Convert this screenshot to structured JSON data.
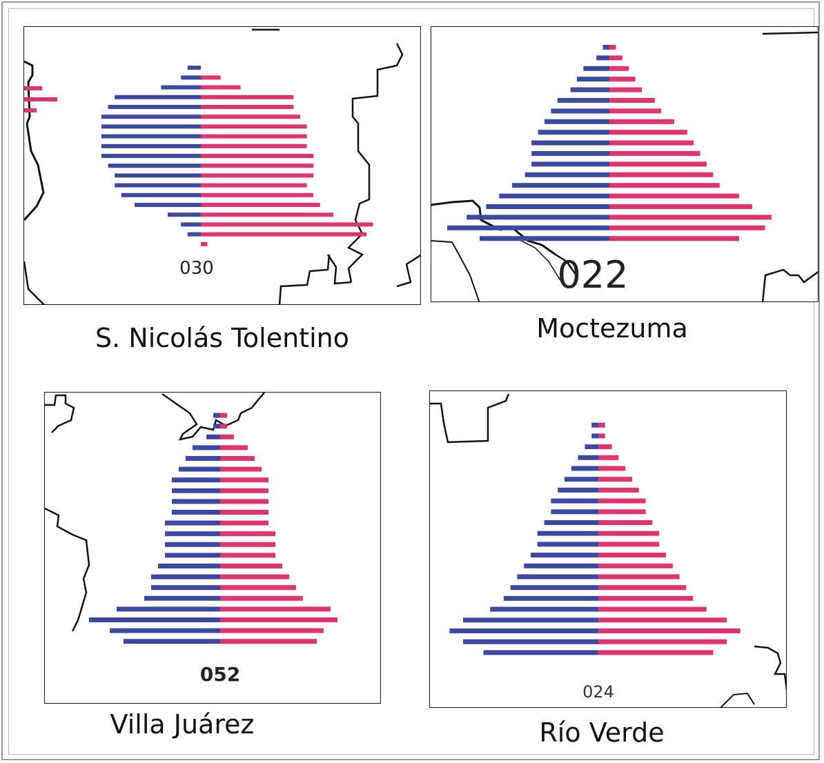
{
  "colors": {
    "male": "#3b4aa0",
    "female": "#e0336f",
    "outline": "#111111"
  },
  "chart_data": [
    {
      "type": "bar",
      "id": "030",
      "panel_label": "030",
      "caption": "S. Nicolás Tolentino",
      "series": [
        {
          "name": "",
          "values": [
            0,
            2,
            3,
            6,
            13,
            14,
            15,
            15,
            15,
            15,
            15,
            14,
            13,
            13,
            12,
            10,
            5,
            3,
            2,
            0,
            0
          ]
        },
        {
          "name": "",
          "values": [
            0,
            0,
            3,
            6,
            14,
            14,
            15,
            16,
            16,
            16,
            17,
            17,
            17,
            16,
            17,
            18,
            20,
            26,
            25,
            1,
            0
          ]
        }
      ],
      "orientation": "horizontal-pyramid"
    },
    {
      "type": "bar",
      "id": "022",
      "panel_label": "022",
      "caption": "Moctezuma",
      "series": [
        {
          "name": "",
          "values": [
            1,
            2,
            4,
            5,
            6,
            8,
            9,
            10,
            11,
            12,
            12,
            12,
            13,
            15,
            17,
            19,
            22,
            25,
            20,
            0
          ]
        },
        {
          "name": "",
          "values": [
            1,
            2,
            3,
            4,
            5,
            7,
            8,
            10,
            12,
            13,
            14,
            15,
            16,
            17,
            20,
            22,
            25,
            24,
            20,
            0
          ]
        }
      ],
      "orientation": "horizontal-pyramid"
    },
    {
      "type": "bar",
      "id": "052",
      "panel_label": "052",
      "caption": "Villa Juárez",
      "series": [
        {
          "name": "",
          "values": [
            0,
            1,
            1,
            2,
            4,
            5,
            6,
            7,
            7,
            7,
            7,
            8,
            8,
            8,
            8,
            9,
            10,
            10,
            11,
            15,
            19,
            16,
            14
          ]
        },
        {
          "name": "",
          "values": [
            0,
            1,
            1,
            2,
            4,
            5,
            6,
            7,
            7,
            7,
            7,
            7,
            8,
            8,
            8,
            9,
            10,
            11,
            12,
            16,
            17,
            15,
            14
          ]
        }
      ],
      "orientation": "horizontal-pyramid"
    },
    {
      "type": "bar",
      "id": "024",
      "panel_label": "024",
      "caption": "Río Verde",
      "series": [
        {
          "name": "",
          "values": [
            0,
            1,
            1,
            2,
            3,
            4,
            5,
            6,
            7,
            7,
            8,
            9,
            9,
            10,
            11,
            12,
            13,
            14,
            16,
            20,
            22,
            20,
            17
          ]
        },
        {
          "name": "",
          "values": [
            0,
            1,
            1,
            2,
            3,
            4,
            5,
            6,
            7,
            7,
            8,
            9,
            9,
            10,
            11,
            12,
            13,
            14,
            16,
            19,
            21,
            19,
            17
          ]
        }
      ],
      "orientation": "horizontal-pyramid"
    }
  ]
}
